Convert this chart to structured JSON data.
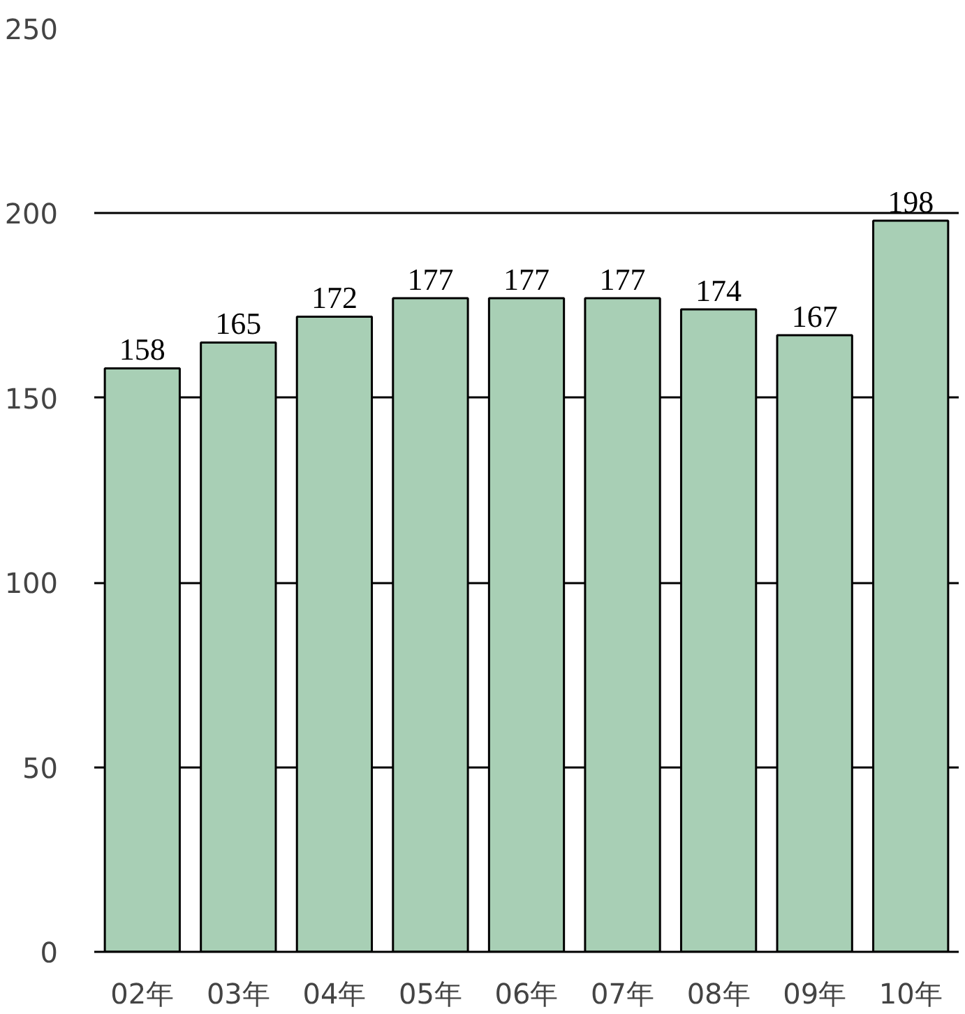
{
  "chart_data": {
    "type": "bar",
    "categories": [
      "02年",
      "03年",
      "04年",
      "05年",
      "06年",
      "07年",
      "08年",
      "09年",
      "10年"
    ],
    "values": [
      158,
      165,
      172,
      177,
      177,
      177,
      174,
      167,
      198
    ],
    "color": "#a8cfb5",
    "ylim": [
      0,
      250
    ],
    "yticks": [
      0,
      50,
      100,
      150,
      200,
      250
    ],
    "grid": "y",
    "data_labels": true
  }
}
